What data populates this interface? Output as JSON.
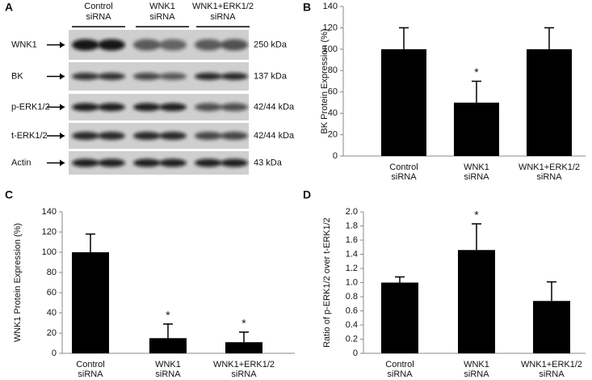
{
  "blot": {
    "panel": "A",
    "groups": [
      [
        "Control",
        "siRNA"
      ],
      [
        "WNK1",
        "siRNA"
      ],
      [
        "WNK1+ERK1/2",
        "siRNA"
      ]
    ],
    "rows": [
      {
        "label": "WNK1",
        "size": "250 kDa"
      },
      {
        "label": "BK",
        "size": "137 kDa"
      },
      {
        "label": "p-ERK1/2",
        "size": "42/44 kDa"
      },
      {
        "label": "t-ERK1/2",
        "size": "42/44 kDa"
      },
      {
        "label": "Actin",
        "size": "43 kDa"
      }
    ]
  },
  "chart_data": [
    {
      "type": "bar",
      "panel": "B",
      "ylabel": "BK Protein Expression (%)",
      "categories": [
        [
          "Control",
          "siRNA"
        ],
        [
          "WNK1",
          "siRNA"
        ],
        [
          "WNK1+ERK1/2",
          "siRNA"
        ]
      ],
      "values": [
        100,
        50,
        100
      ],
      "errors": [
        20,
        20,
        20
      ],
      "annotations": [
        null,
        "*",
        null
      ],
      "color": "#000000",
      "ylim": [
        0,
        140
      ],
      "yticks": [
        0,
        20,
        40,
        60,
        80,
        100,
        120,
        140
      ]
    },
    {
      "type": "bar",
      "panel": "C",
      "ylabel": "WNK1 Protein Expression (%)",
      "categories": [
        [
          "Control",
          "siRNA"
        ],
        [
          "WNK1",
          "siRNA"
        ],
        [
          "WNK1+ERK1/2",
          "siRNA"
        ]
      ],
      "values": [
        100,
        15,
        11
      ],
      "errors": [
        18,
        14,
        10
      ],
      "annotations": [
        null,
        "*",
        "*"
      ],
      "color": "#000000",
      "ylim": [
        0,
        140
      ],
      "yticks": [
        0,
        20,
        40,
        60,
        80,
        100,
        120,
        140
      ]
    },
    {
      "type": "bar",
      "panel": "D",
      "ylabel": "Ratio of p-ERK1/2 over t-ERK1/2",
      "categories": [
        [
          "Control",
          "siRNA"
        ],
        [
          "WNK1",
          "siRNA"
        ],
        [
          "WNK1+ERK1/2",
          "siRNA"
        ]
      ],
      "values": [
        1.0,
        1.46,
        0.74
      ],
      "errors": [
        0.08,
        0.37,
        0.27
      ],
      "annotations": [
        null,
        "*",
        null
      ],
      "color": "#000000",
      "ylim": [
        0,
        2.0
      ],
      "yticks": [
        0,
        0.2,
        0.4,
        0.6,
        0.8,
        {
          "value": 1.0,
          "label": "1.0"
        },
        1.2,
        1.4,
        1.6,
        1.8,
        {
          "value": 2.0,
          "label": "2.0"
        }
      ]
    }
  ]
}
